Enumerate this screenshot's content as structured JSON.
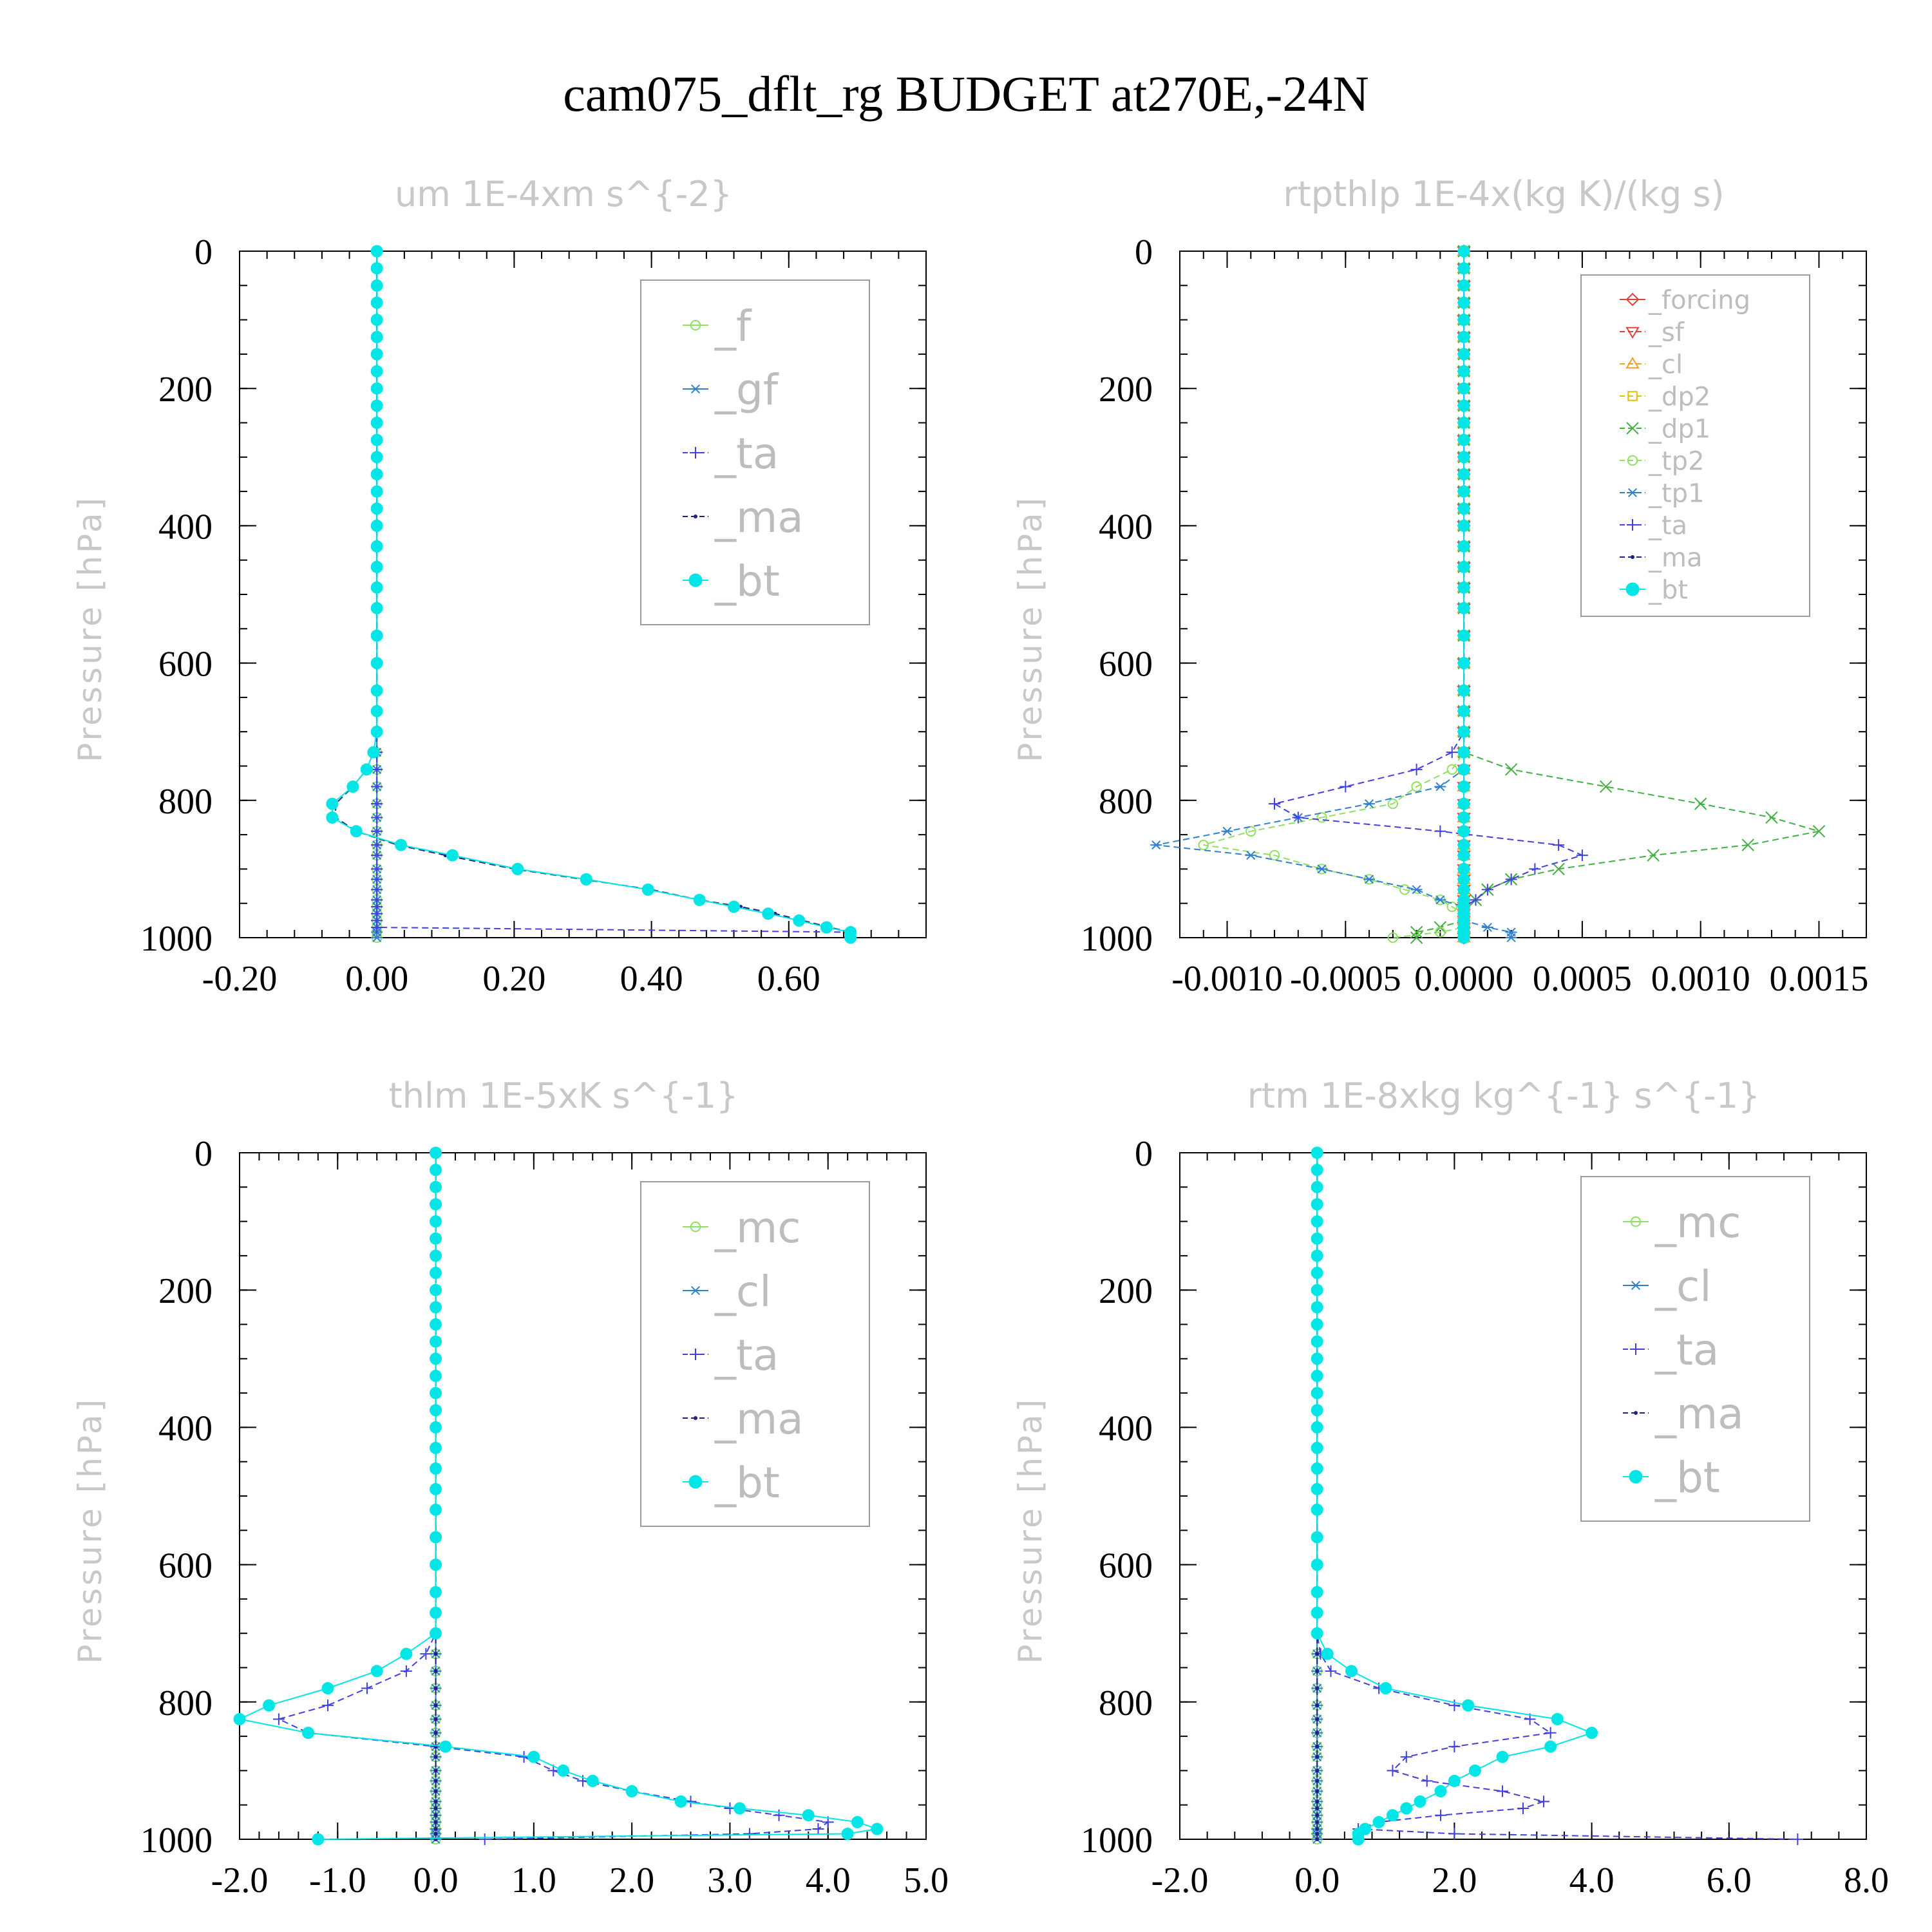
{
  "title": "cam075_dflt_rg  BUDGET at270E,-24N",
  "colors": {
    "forcing": "#e04040",
    "sf": "#e04040",
    "cl_rt": "#f0a020",
    "dp2": "#e0c000",
    "dp1": "#40b040",
    "tp2": "#90e060",
    "tp1": "#3080d0",
    "ta": "#4040e0",
    "ma": "#202080",
    "bt": "#00e5e5",
    "f": "#90e060",
    "gf": "#3080d0",
    "mc": "#90e060",
    "cl": "#3080d0"
  },
  "chart_data": [
    {
      "type": "line",
      "title": "um  1E-4xm s^{-2}",
      "ylabel": "Pressure [hPa]",
      "xlim": [
        -0.2,
        0.8
      ],
      "ylim": [
        1000,
        0
      ],
      "x_ticks": [
        "-0.20",
        "0.00",
        "0.20",
        "0.40",
        "0.60"
      ],
      "x_tick_values": [
        -0.2,
        0.0,
        0.2,
        0.4,
        0.6
      ],
      "y_ticks": [
        "0",
        "200",
        "400",
        "600",
        "800",
        "1000"
      ],
      "y_tick_values": [
        0,
        200,
        400,
        600,
        800,
        1000
      ],
      "legend_font": 66,
      "pressure": [
        0,
        25,
        50,
        75,
        100,
        125,
        150,
        175,
        200,
        225,
        250,
        275,
        300,
        325,
        350,
        375,
        400,
        430,
        460,
        490,
        520,
        560,
        600,
        640,
        670,
        700,
        730,
        755,
        780,
        805,
        825,
        845,
        865,
        880,
        900,
        915,
        930,
        945,
        955,
        965,
        975,
        985,
        992,
        1000
      ],
      "series": [
        {
          "name": "_f",
          "color_key": "f",
          "style": "solid",
          "marker": "circle-open",
          "values": "zero"
        },
        {
          "name": "_gf",
          "color_key": "gf",
          "style": "solid",
          "marker": "asterisk",
          "values": "zero"
        },
        {
          "name": "_ta",
          "color_key": "ta",
          "style": "dashed",
          "marker": "plus",
          "values": [
            0,
            0,
            0,
            0,
            0,
            0,
            0,
            0,
            0,
            0,
            0,
            0,
            0,
            0,
            0,
            0,
            0,
            0,
            0,
            0,
            0,
            0,
            0,
            0,
            0,
            0,
            0,
            0,
            0,
            0,
            0,
            0,
            0,
            0,
            0,
            0,
            0,
            0,
            0,
            0,
            0,
            0,
            0.69,
            0.69
          ]
        },
        {
          "name": "_ma",
          "color_key": "ma",
          "style": "dashed",
          "marker": "dot",
          "values": [
            0,
            0,
            0,
            0,
            0,
            0,
            0,
            0,
            0,
            0,
            0,
            0,
            0,
            0,
            0,
            0,
            0,
            0,
            0,
            0,
            0,
            0,
            0,
            0,
            0,
            0,
            -0.005,
            -0.015,
            -0.035,
            -0.06,
            -0.06,
            -0.03,
            0.03,
            0.1,
            0.2,
            0.3,
            0.4,
            0.47,
            0.53,
            0.58,
            0.62,
            0.66,
            0.69,
            0.69
          ]
        },
        {
          "name": "_bt",
          "color_key": "bt",
          "style": "solid",
          "marker": "circle-filled",
          "values": [
            0,
            0,
            0,
            0,
            0,
            0,
            0,
            0,
            0,
            0,
            0,
            0,
            0,
            0,
            0,
            0,
            0,
            0,
            0,
            0,
            0,
            0,
            0,
            0,
            0,
            0,
            -0.005,
            -0.015,
            -0.035,
            -0.065,
            -0.065,
            -0.03,
            0.035,
            0.11,
            0.205,
            0.305,
            0.395,
            0.47,
            0.52,
            0.57,
            0.615,
            0.655,
            0.69,
            0.69
          ]
        }
      ]
    },
    {
      "type": "line",
      "title": "rtpthlp  1E-4x(kg K)/(kg s)",
      "ylabel": "Pressure [hPa]",
      "xlim": [
        -0.0012,
        0.0017
      ],
      "ylim": [
        1000,
        0
      ],
      "x_ticks": [
        "-0.0010",
        "-0.0005",
        "0.0000",
        "0.0005",
        "0.0010",
        "0.0015"
      ],
      "x_tick_values": [
        -0.001,
        -0.0005,
        0.0,
        0.0005,
        0.001,
        0.0015
      ],
      "y_ticks": [
        "0",
        "200",
        "400",
        "600",
        "800",
        "1000"
      ],
      "y_tick_values": [
        0,
        200,
        400,
        600,
        800,
        1000
      ],
      "legend_font": 40,
      "pressure": [
        0,
        25,
        50,
        75,
        100,
        125,
        150,
        175,
        200,
        225,
        250,
        275,
        300,
        325,
        350,
        375,
        400,
        430,
        460,
        490,
        520,
        560,
        600,
        640,
        670,
        700,
        730,
        755,
        780,
        805,
        825,
        845,
        865,
        880,
        900,
        915,
        930,
        945,
        955,
        965,
        975,
        985,
        992,
        1000
      ],
      "series": [
        {
          "name": "_forcing",
          "color_key": "forcing",
          "style": "solid",
          "marker": "diamond",
          "values": "zero"
        },
        {
          "name": "_sf",
          "color_key": "sf",
          "style": "dashed",
          "marker": "triangle-down",
          "values": "zero"
        },
        {
          "name": "_cl",
          "color_key": "cl_rt",
          "style": "dashed",
          "marker": "triangle-up",
          "values": "zero"
        },
        {
          "name": "_dp2",
          "color_key": "dp2",
          "style": "dashed",
          "marker": "square",
          "values": "zero"
        },
        {
          "name": "_dp1",
          "color_key": "dp1",
          "style": "dashed",
          "marker": "cross",
          "values": [
            0,
            0,
            0,
            0,
            0,
            0,
            0,
            0,
            0,
            0,
            0,
            0,
            0,
            0,
            0,
            0,
            0,
            0,
            0,
            0,
            0,
            0,
            0,
            0,
            0,
            0,
            0,
            0.0002,
            0.0006,
            0.001,
            0.0013,
            0.0015,
            0.0012,
            0.0008,
            0.0004,
            0.0002,
            0.0001,
            5e-05,
            0,
            0,
            0,
            -0.0001,
            -0.0002,
            -0.0002
          ]
        },
        {
          "name": "_tp2",
          "color_key": "tp2",
          "style": "dashed",
          "marker": "circle-open",
          "values": [
            0,
            0,
            0,
            0,
            0,
            0,
            0,
            0,
            0,
            0,
            0,
            0,
            0,
            0,
            0,
            0,
            0,
            0,
            0,
            0,
            0,
            0,
            0,
            0,
            0,
            0,
            0,
            -5e-05,
            -0.0002,
            -0.0003,
            -0.0006,
            -0.0009,
            -0.0011,
            -0.0008,
            -0.0006,
            -0.0004,
            -0.00025,
            -0.0001,
            -5e-05,
            0,
            0,
            0,
            -0.0001,
            -0.0003
          ]
        },
        {
          "name": "_tp1",
          "color_key": "tp1",
          "style": "dashed",
          "marker": "asterisk",
          "values": [
            0,
            0,
            0,
            0,
            0,
            0,
            0,
            0,
            0,
            0,
            0,
            0,
            0,
            0,
            0,
            0,
            0,
            0,
            0,
            0,
            0,
            0,
            0,
            0,
            0,
            0,
            0,
            0,
            -0.0001,
            -0.0004,
            -0.0007,
            -0.001,
            -0.0013,
            -0.0009,
            -0.0006,
            -0.0004,
            -0.0002,
            -0.0001,
            0,
            0,
            0,
            0.0001,
            0.0002,
            0.0002
          ]
        },
        {
          "name": "_ta",
          "color_key": "ta",
          "style": "dashed",
          "marker": "plus",
          "values": [
            0,
            0,
            0,
            0,
            0,
            0,
            0,
            0,
            0,
            0,
            0,
            0,
            0,
            0,
            0,
            0,
            0,
            0,
            0,
            0,
            0,
            0,
            0,
            0,
            0,
            0,
            -5e-05,
            -0.0002,
            -0.0005,
            -0.0008,
            -0.0007,
            -0.0001,
            0.0004,
            0.0005,
            0.0003,
            0.0002,
            0.0001,
            5e-05,
            0,
            0,
            0,
            0,
            0,
            0
          ]
        },
        {
          "name": "_ma",
          "color_key": "ma",
          "style": "dashed",
          "marker": "dot",
          "values": "zero"
        },
        {
          "name": "_bt",
          "color_key": "bt",
          "style": "solid",
          "marker": "circle-filled",
          "values": "zero"
        }
      ]
    },
    {
      "type": "line",
      "title": "thlm  1E-5xK s^{-1}",
      "ylabel": "Pressure [hPa]",
      "xlim": [
        -2.0,
        5.0
      ],
      "ylim": [
        1000,
        0
      ],
      "x_ticks": [
        "-2.0",
        "-1.0",
        "0.0",
        "1.0",
        "2.0",
        "3.0",
        "4.0",
        "5.0"
      ],
      "x_tick_values": [
        -2,
        -1,
        0,
        1,
        2,
        3,
        4,
        5
      ],
      "y_ticks": [
        "0",
        "200",
        "400",
        "600",
        "800",
        "1000"
      ],
      "y_tick_values": [
        0,
        200,
        400,
        600,
        800,
        1000
      ],
      "legend_font": 66,
      "pressure": [
        0,
        25,
        50,
        75,
        100,
        125,
        150,
        175,
        200,
        225,
        250,
        275,
        300,
        325,
        350,
        375,
        400,
        430,
        460,
        490,
        520,
        560,
        600,
        640,
        670,
        700,
        730,
        755,
        780,
        805,
        825,
        845,
        865,
        880,
        900,
        915,
        930,
        945,
        955,
        965,
        975,
        985,
        992,
        1000
      ],
      "series": [
        {
          "name": "_mc",
          "color_key": "mc",
          "style": "solid",
          "marker": "circle-open",
          "values": "zero"
        },
        {
          "name": "_cl",
          "color_key": "cl",
          "style": "solid",
          "marker": "asterisk",
          "values": "zero"
        },
        {
          "name": "_ta",
          "color_key": "ta",
          "style": "dashed",
          "marker": "plus",
          "values": [
            0,
            0,
            0,
            0,
            0,
            0,
            0,
            0,
            0,
            0,
            0,
            0,
            0,
            0,
            0,
            0,
            0,
            0,
            0,
            0,
            0,
            0,
            0,
            0,
            0,
            0,
            -0.1,
            -0.3,
            -0.7,
            -1.1,
            -1.6,
            -1.3,
            0.0,
            0.9,
            1.2,
            1.5,
            2.0,
            2.6,
            3.0,
            3.5,
            4.0,
            3.9,
            3.2,
            0.5
          ]
        },
        {
          "name": "_ma",
          "color_key": "ma",
          "style": "dashed",
          "marker": "dot",
          "values": "zero"
        },
        {
          "name": "_bt",
          "color_key": "bt",
          "style": "solid",
          "marker": "circle-filled",
          "values": [
            0,
            0,
            0,
            0,
            0,
            0,
            0,
            0,
            0,
            0,
            0,
            0,
            0,
            0,
            0,
            0,
            0,
            0,
            0,
            0,
            0,
            0,
            0,
            0,
            0,
            0,
            -0.3,
            -0.6,
            -1.1,
            -1.7,
            -2.0,
            -1.3,
            0.1,
            1.0,
            1.3,
            1.6,
            2.0,
            2.5,
            3.1,
            3.8,
            4.3,
            4.5,
            4.2,
            -1.2
          ]
        }
      ]
    },
    {
      "type": "line",
      "title": "rtm  1E-8xkg kg^{-1} s^{-1}",
      "ylabel": "Pressure [hPa]",
      "xlim": [
        -2.0,
        8.0
      ],
      "ylim": [
        1000,
        0
      ],
      "x_ticks": [
        "-2.0",
        "0.0",
        "2.0",
        "4.0",
        "6.0",
        "8.0"
      ],
      "x_tick_values": [
        -2,
        0,
        2,
        4,
        6,
        8
      ],
      "y_ticks": [
        "0",
        "200",
        "400",
        "600",
        "800",
        "1000"
      ],
      "y_tick_values": [
        0,
        200,
        400,
        600,
        800,
        1000
      ],
      "legend_font": 66,
      "pressure": [
        0,
        25,
        50,
        75,
        100,
        125,
        150,
        175,
        200,
        225,
        250,
        275,
        300,
        325,
        350,
        375,
        400,
        430,
        460,
        490,
        520,
        560,
        600,
        640,
        670,
        700,
        730,
        755,
        780,
        805,
        825,
        845,
        865,
        880,
        900,
        915,
        930,
        945,
        955,
        965,
        975,
        985,
        992,
        1000
      ],
      "series": [
        {
          "name": "_mc",
          "color_key": "mc",
          "style": "solid",
          "marker": "circle-open",
          "values": "zero"
        },
        {
          "name": "_cl",
          "color_key": "cl",
          "style": "solid",
          "marker": "asterisk",
          "values": "zero"
        },
        {
          "name": "_ta",
          "color_key": "ta",
          "style": "dashed",
          "marker": "plus",
          "values": [
            0,
            0,
            0,
            0,
            0,
            0,
            0,
            0,
            0,
            0,
            0,
            0,
            0,
            0,
            0,
            0,
            0,
            0,
            0,
            0,
            0,
            0,
            0,
            0,
            0,
            0,
            0.05,
            0.2,
            0.9,
            2.0,
            3.1,
            3.4,
            2.0,
            1.3,
            1.1,
            1.6,
            2.7,
            3.3,
            3.0,
            1.8,
            0.9,
            0.6,
            2.0,
            7.0
          ]
        },
        {
          "name": "_ma",
          "color_key": "ma",
          "style": "dashed",
          "marker": "dot",
          "values": "zero"
        },
        {
          "name": "_bt",
          "color_key": "bt",
          "style": "solid",
          "marker": "circle-filled",
          "values": [
            0,
            0,
            0,
            0,
            0,
            0,
            0,
            0,
            0,
            0,
            0,
            0,
            0,
            0,
            0,
            0,
            0,
            0,
            0,
            0,
            0,
            0,
            0,
            0,
            0,
            0,
            0.15,
            0.5,
            1.0,
            2.2,
            3.5,
            4.0,
            3.4,
            2.7,
            2.3,
            2.0,
            1.8,
            1.5,
            1.3,
            1.1,
            0.9,
            0.7,
            0.6,
            0.6
          ]
        }
      ]
    }
  ]
}
